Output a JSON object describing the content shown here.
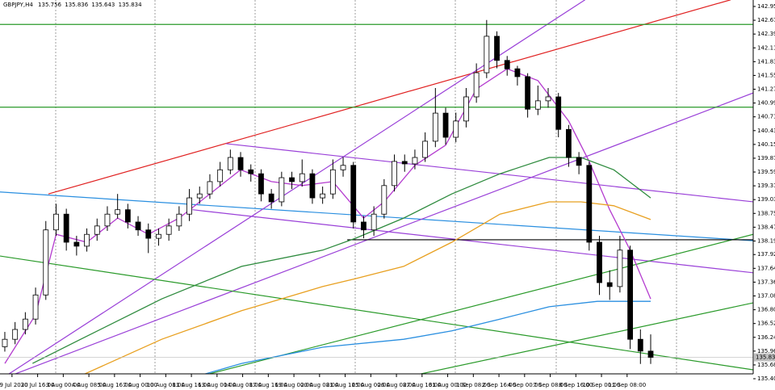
{
  "chart_data": {
    "type": "candlestick",
    "symbol": "GBPJPY,H4",
    "ohlc": [
      135.756,
      135.836,
      135.643,
      135.834
    ],
    "up_color": "#ffffff",
    "down_color": "#000000",
    "xlim": [
      -0.47,
      73
    ],
    "ylim": [
      135.384,
      143.086
    ],
    "yticks": [
      142.955,
      142.675,
      142.395,
      142.115,
      141.835,
      141.555,
      141.275,
      140.995,
      140.715,
      140.435,
      140.155,
      139.875,
      139.595,
      139.315,
      139.035,
      138.755,
      138.475,
      138.195,
      {
        "value": 137.92,
        "label": "137.920"
      },
      {
        "value": 137.64,
        "label": "137.640"
      },
      {
        "value": 137.36,
        "label": "137.360"
      },
      {
        "value": 137.08,
        "label": "137.080"
      },
      {
        "value": 136.8,
        "label": "136.800"
      },
      {
        "value": 136.52,
        "label": "136.520"
      },
      {
        "value": 136.24,
        "label": "136.240"
      },
      {
        "value": 135.96,
        "label": "135.960"
      },
      {
        "value": 135.68,
        "label": "135.680"
      },
      {
        "value": 135.4,
        "label": "135.400"
      }
    ],
    "xticks": [
      {
        "value": 0.7,
        "label": "29 Jul 2020"
      },
      {
        "value": 3.2,
        "label": "30 Jul 16:00"
      },
      {
        "value": 5.7,
        "label": "3 Aug 00:00"
      },
      {
        "value": 8.2,
        "label": "4 Aug 08:00"
      },
      {
        "value": 10.7,
        "label": "5 Aug 16:00"
      },
      {
        "value": 13.2,
        "label": "7 Aug 00:00"
      },
      {
        "value": 15.7,
        "label": "10 Aug 08:00"
      },
      {
        "value": 18.2,
        "label": "11 Aug 16:00"
      },
      {
        "value": 20.7,
        "label": "13 Aug 00:00"
      },
      {
        "value": 23.2,
        "label": "14 Aug 08:00"
      },
      {
        "value": 25.7,
        "label": "17 Aug 16:00"
      },
      {
        "value": 28.2,
        "label": "19 Aug 00:00"
      },
      {
        "value": 30.7,
        "label": "20 Aug 08:00"
      },
      {
        "value": 33.2,
        "label": "21 Aug 16:00"
      },
      {
        "value": 35.7,
        "label": "25 Aug 00:00"
      },
      {
        "value": 38.2,
        "label": "26 Aug 08:00"
      },
      {
        "value": 40.7,
        "label": "27 Aug 16:00"
      },
      {
        "value": 43.2,
        "label": "31 Aug 00:00"
      },
      {
        "value": 45.7,
        "label": "1 Sep 08:00"
      },
      {
        "value": 48.2,
        "label": "2 Sep 16:00"
      },
      {
        "value": 50.7,
        "label": "4 Sep 00:00"
      },
      {
        "value": 53.2,
        "label": "7 Sep 08:00"
      },
      {
        "value": 55.7,
        "label": "8 Sep 16:00"
      },
      {
        "value": 58.2,
        "label": "10 Sep 00:00"
      },
      {
        "value": 60.7,
        "label": "11 Sep 08:00"
      }
    ],
    "open": [
      136.05,
      136.2,
      136.4,
      136.61,
      137.1,
      138.42,
      138.74,
      138.17,
      138.09,
      138.33,
      138.5,
      138.74,
      138.83,
      138.58,
      138.42,
      138.25,
      138.33,
      138.5,
      138.74,
      139.07,
      139.15,
      139.4,
      139.64,
      139.89,
      139.64,
      139.56,
      139.15,
      138.99,
      139.48,
      139.4,
      139.56,
      139.07,
      139.15,
      139.64,
      139.73,
      138.58,
      138.42,
      138.74,
      139.32,
      139.81,
      139.76,
      139.89,
      140.22,
      140.79,
      140.3,
      140.63,
      141.12,
      141.61,
      142.35,
      141.86,
      141.69,
      141.53,
      140.87,
      141.04,
      141.12,
      140.46,
      139.89,
      139.73,
      138.17,
      137.35,
      137.27,
      138.01,
      136.2,
      135.96
    ],
    "high": [
      136.35,
      136.55,
      136.75,
      137.25,
      138.6,
      138.95,
      138.85,
      138.3,
      138.45,
      138.65,
      138.9,
      139.15,
      138.95,
      138.7,
      138.55,
      138.45,
      138.65,
      138.9,
      139.25,
      139.3,
      139.55,
      139.8,
      140.05,
      140.0,
      139.75,
      139.65,
      139.25,
      139.6,
      139.6,
      139.85,
      139.65,
      139.3,
      139.85,
      139.9,
      139.8,
      138.7,
      138.9,
      139.45,
      139.95,
      139.95,
      140.05,
      140.4,
      141.3,
      140.9,
      140.8,
      141.3,
      141.8,
      142.68,
      142.45,
      141.95,
      141.75,
      141.6,
      141.35,
      141.3,
      141.2,
      140.55,
      140.0,
      139.8,
      138.3,
      137.6,
      138.3,
      138.1,
      136.4,
      136.3
    ],
    "low": [
      135.95,
      136.1,
      136.3,
      136.5,
      137.0,
      138.3,
      138.0,
      137.9,
      137.98,
      138.2,
      138.4,
      138.65,
      138.45,
      138.3,
      137.95,
      138.1,
      138.2,
      138.4,
      138.6,
      138.95,
      139.05,
      139.3,
      139.55,
      139.5,
      139.4,
      139.0,
      138.85,
      138.9,
      139.25,
      139.3,
      138.95,
      138.95,
      139.05,
      139.5,
      138.45,
      138.25,
      138.3,
      138.65,
      139.2,
      139.6,
      139.65,
      139.8,
      140.1,
      140.15,
      140.2,
      140.5,
      141.0,
      141.5,
      141.7,
      141.55,
      141.35,
      140.7,
      140.75,
      140.9,
      140.3,
      139.7,
      139.55,
      138.0,
      137.1,
      137.0,
      137.15,
      136.0,
      135.7,
      135.7
    ],
    "close": [
      136.2,
      136.4,
      136.61,
      137.1,
      138.42,
      138.74,
      138.17,
      138.09,
      138.33,
      138.5,
      138.74,
      138.83,
      138.58,
      138.42,
      138.25,
      138.33,
      138.5,
      138.74,
      139.07,
      139.15,
      139.4,
      139.64,
      139.89,
      139.64,
      139.56,
      139.15,
      138.99,
      139.48,
      139.4,
      139.56,
      139.07,
      139.15,
      139.64,
      139.73,
      138.58,
      138.42,
      138.74,
      139.32,
      139.81,
      139.76,
      139.89,
      140.22,
      140.79,
      140.3,
      140.63,
      141.12,
      141.61,
      142.35,
      141.86,
      141.69,
      141.53,
      140.87,
      141.04,
      141.12,
      140.46,
      139.89,
      139.73,
      138.17,
      137.35,
      137.27,
      138.01,
      136.2,
      135.96,
      135.834
    ],
    "moving_averages": [
      {
        "color": "#b43ccf",
        "x": [
          0,
          3,
          5,
          8,
          11,
          14,
          17,
          20,
          23,
          26,
          29,
          32,
          35,
          37,
          40,
          43,
          46,
          49,
          52,
          55,
          57,
          59,
          61,
          63
        ],
        "values": [
          135.71,
          136.7,
          138.33,
          138.17,
          138.66,
          138.33,
          138.66,
          139.15,
          139.64,
          139.4,
          139.32,
          139.4,
          138.66,
          138.99,
          139.73,
          140.14,
          141.28,
          141.69,
          141.45,
          140.63,
          139.81,
          138.83,
          138.01,
          137.02
        ]
      },
      {
        "color": "#2e8b3e",
        "x": [
          2.7,
          7.4,
          15.3,
          23.1,
          31,
          34.2,
          38.9,
          43.6,
          48.3,
          53.1,
          56.2,
          59.4,
          63
        ],
        "values": [
          135.71,
          136.2,
          137.02,
          137.68,
          138.01,
          138.25,
          138.66,
          139.15,
          139.56,
          139.89,
          139.89,
          139.64,
          139.07
        ]
      },
      {
        "color": "#e8a020",
        "x": [
          7.4,
          15.3,
          23.1,
          31,
          34.2,
          38.9,
          43.6,
          48.3,
          53.1,
          56.2,
          59.4,
          63
        ],
        "values": [
          135.46,
          136.2,
          136.78,
          137.27,
          137.43,
          137.68,
          138.17,
          138.74,
          138.99,
          138.99,
          138.91,
          138.63
        ]
      },
      {
        "color": "#2a8fe0",
        "x": [
          17.6,
          23.1,
          31,
          38.9,
          43.6,
          48.3,
          53.1,
          57.8,
          63
        ],
        "values": [
          135.38,
          135.71,
          136.04,
          136.2,
          136.37,
          136.61,
          136.86,
          136.97,
          136.97
        ]
      }
    ],
    "trendlines": [
      {
        "color": "#e02020",
        "x": [
          4.25,
          70.8
        ],
        "y": [
          139.15,
          143.09
        ]
      },
      {
        "color": "#2a8fe0",
        "x": [
          -0.47,
          73
        ],
        "y": [
          139.19,
          138.2
        ]
      },
      {
        "color": "#9a40d8",
        "x": [
          21.6,
          73
        ],
        "y": [
          140.17,
          138.99
        ]
      },
      {
        "color": "#9a40d8",
        "x": [
          18.3,
          73
        ],
        "y": [
          138.83,
          137.55
        ]
      },
      {
        "color": "#9a40d8",
        "x": [
          -0.47,
          56.6
        ],
        "y": [
          135.38,
          143.09
        ]
      },
      {
        "color": "#9a40d8",
        "x": [
          -0.47,
          73
        ],
        "y": [
          135.38,
          141.2
        ]
      },
      {
        "color": "#2a9a2a",
        "x": [
          -0.47,
          73
        ],
        "y": [
          137.89,
          135.58
        ]
      },
      {
        "color": "#2a9a2a",
        "x": [
          15.3,
          73
        ],
        "y": [
          135.25,
          138.33
        ]
      },
      {
        "color": "#2a9a2a",
        "x": [
          35,
          73
        ],
        "y": [
          135.25,
          136.94
        ]
      },
      {
        "color": "#2a9a2a",
        "x": [
          -0.47,
          73
        ],
        "y": [
          142.59,
          142.59
        ]
      },
      {
        "color": "#2a9a2a",
        "x": [
          -0.47,
          73
        ],
        "y": [
          140.91,
          140.91
        ]
      },
      {
        "color": "#000000",
        "x": [
          33.4,
          73
        ],
        "y": [
          138.22,
          138.22
        ]
      }
    ]
  }
}
